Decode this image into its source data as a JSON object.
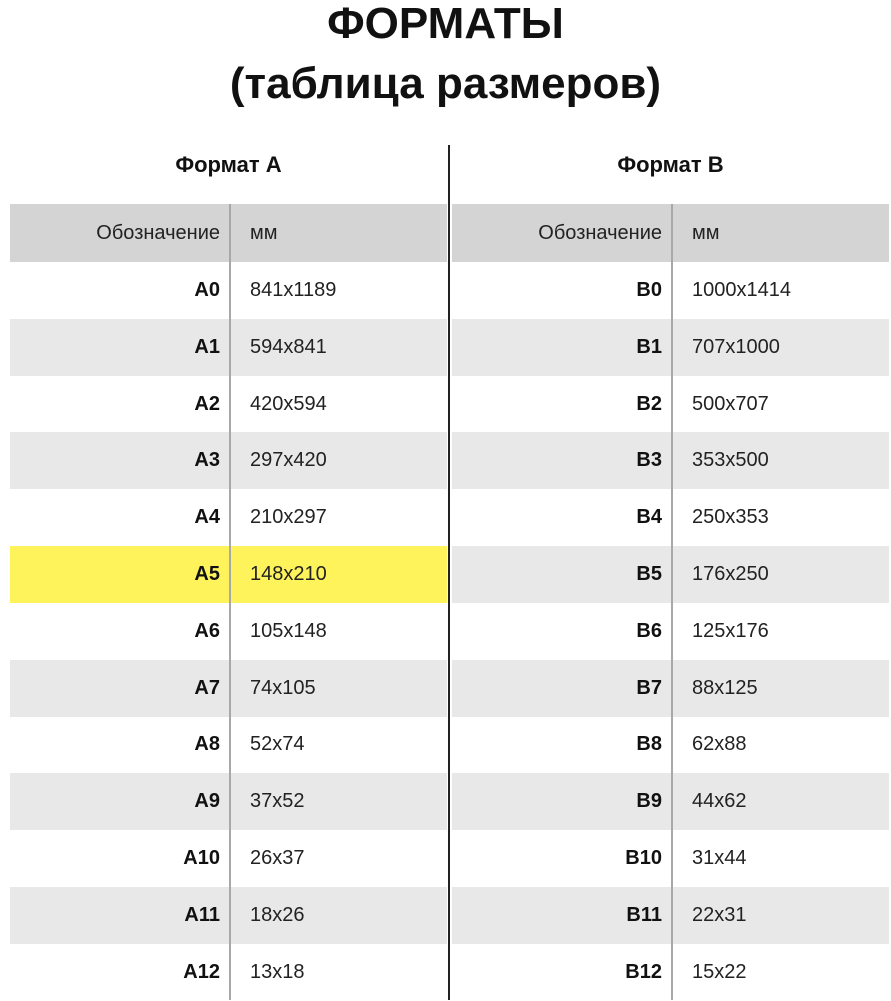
{
  "title": {
    "line1": "ФОРМАТЫ",
    "line2": "(таблица размеров)"
  },
  "colors": {
    "header_bg": "#d4d4d4",
    "stripe_bg": "#e8e8e8",
    "highlight": "#fff35c"
  },
  "tables": [
    {
      "title": "Формат А",
      "headers": {
        "designation": "Обозначение",
        "mm": "мм"
      },
      "highlight_row": "A5",
      "rows": [
        {
          "name": "A0",
          "size": "841x1189"
        },
        {
          "name": "A1",
          "size": "594x841"
        },
        {
          "name": "A2",
          "size": "420x594"
        },
        {
          "name": "A3",
          "size": "297x420"
        },
        {
          "name": "A4",
          "size": "210x297"
        },
        {
          "name": "A5",
          "size": "148x210"
        },
        {
          "name": "A6",
          "size": "105x148"
        },
        {
          "name": "A7",
          "size": "74x105"
        },
        {
          "name": "A8",
          "size": "52x74"
        },
        {
          "name": "A9",
          "size": "37x52"
        },
        {
          "name": "A10",
          "size": "26x37"
        },
        {
          "name": "A11",
          "size": "18x26"
        },
        {
          "name": "A12",
          "size": "13x18"
        }
      ]
    },
    {
      "title": "Формат В",
      "headers": {
        "designation": "Обозначение",
        "mm": "мм"
      },
      "highlight_row": "",
      "rows": [
        {
          "name": "B0",
          "size": "1000x1414"
        },
        {
          "name": "B1",
          "size": "707x1000"
        },
        {
          "name": "B2",
          "size": "500x707"
        },
        {
          "name": "B3",
          "size": "353x500"
        },
        {
          "name": "B4",
          "size": "250x353"
        },
        {
          "name": "B5",
          "size": "176x250"
        },
        {
          "name": "B6",
          "size": "125x176"
        },
        {
          "name": "B7",
          "size": "88x125"
        },
        {
          "name": "B8",
          "size": "62x88"
        },
        {
          "name": "B9",
          "size": "44x62"
        },
        {
          "name": "B10",
          "size": "31x44"
        },
        {
          "name": "B11",
          "size": "22x31"
        },
        {
          "name": "B12",
          "size": "15x22"
        }
      ]
    }
  ]
}
